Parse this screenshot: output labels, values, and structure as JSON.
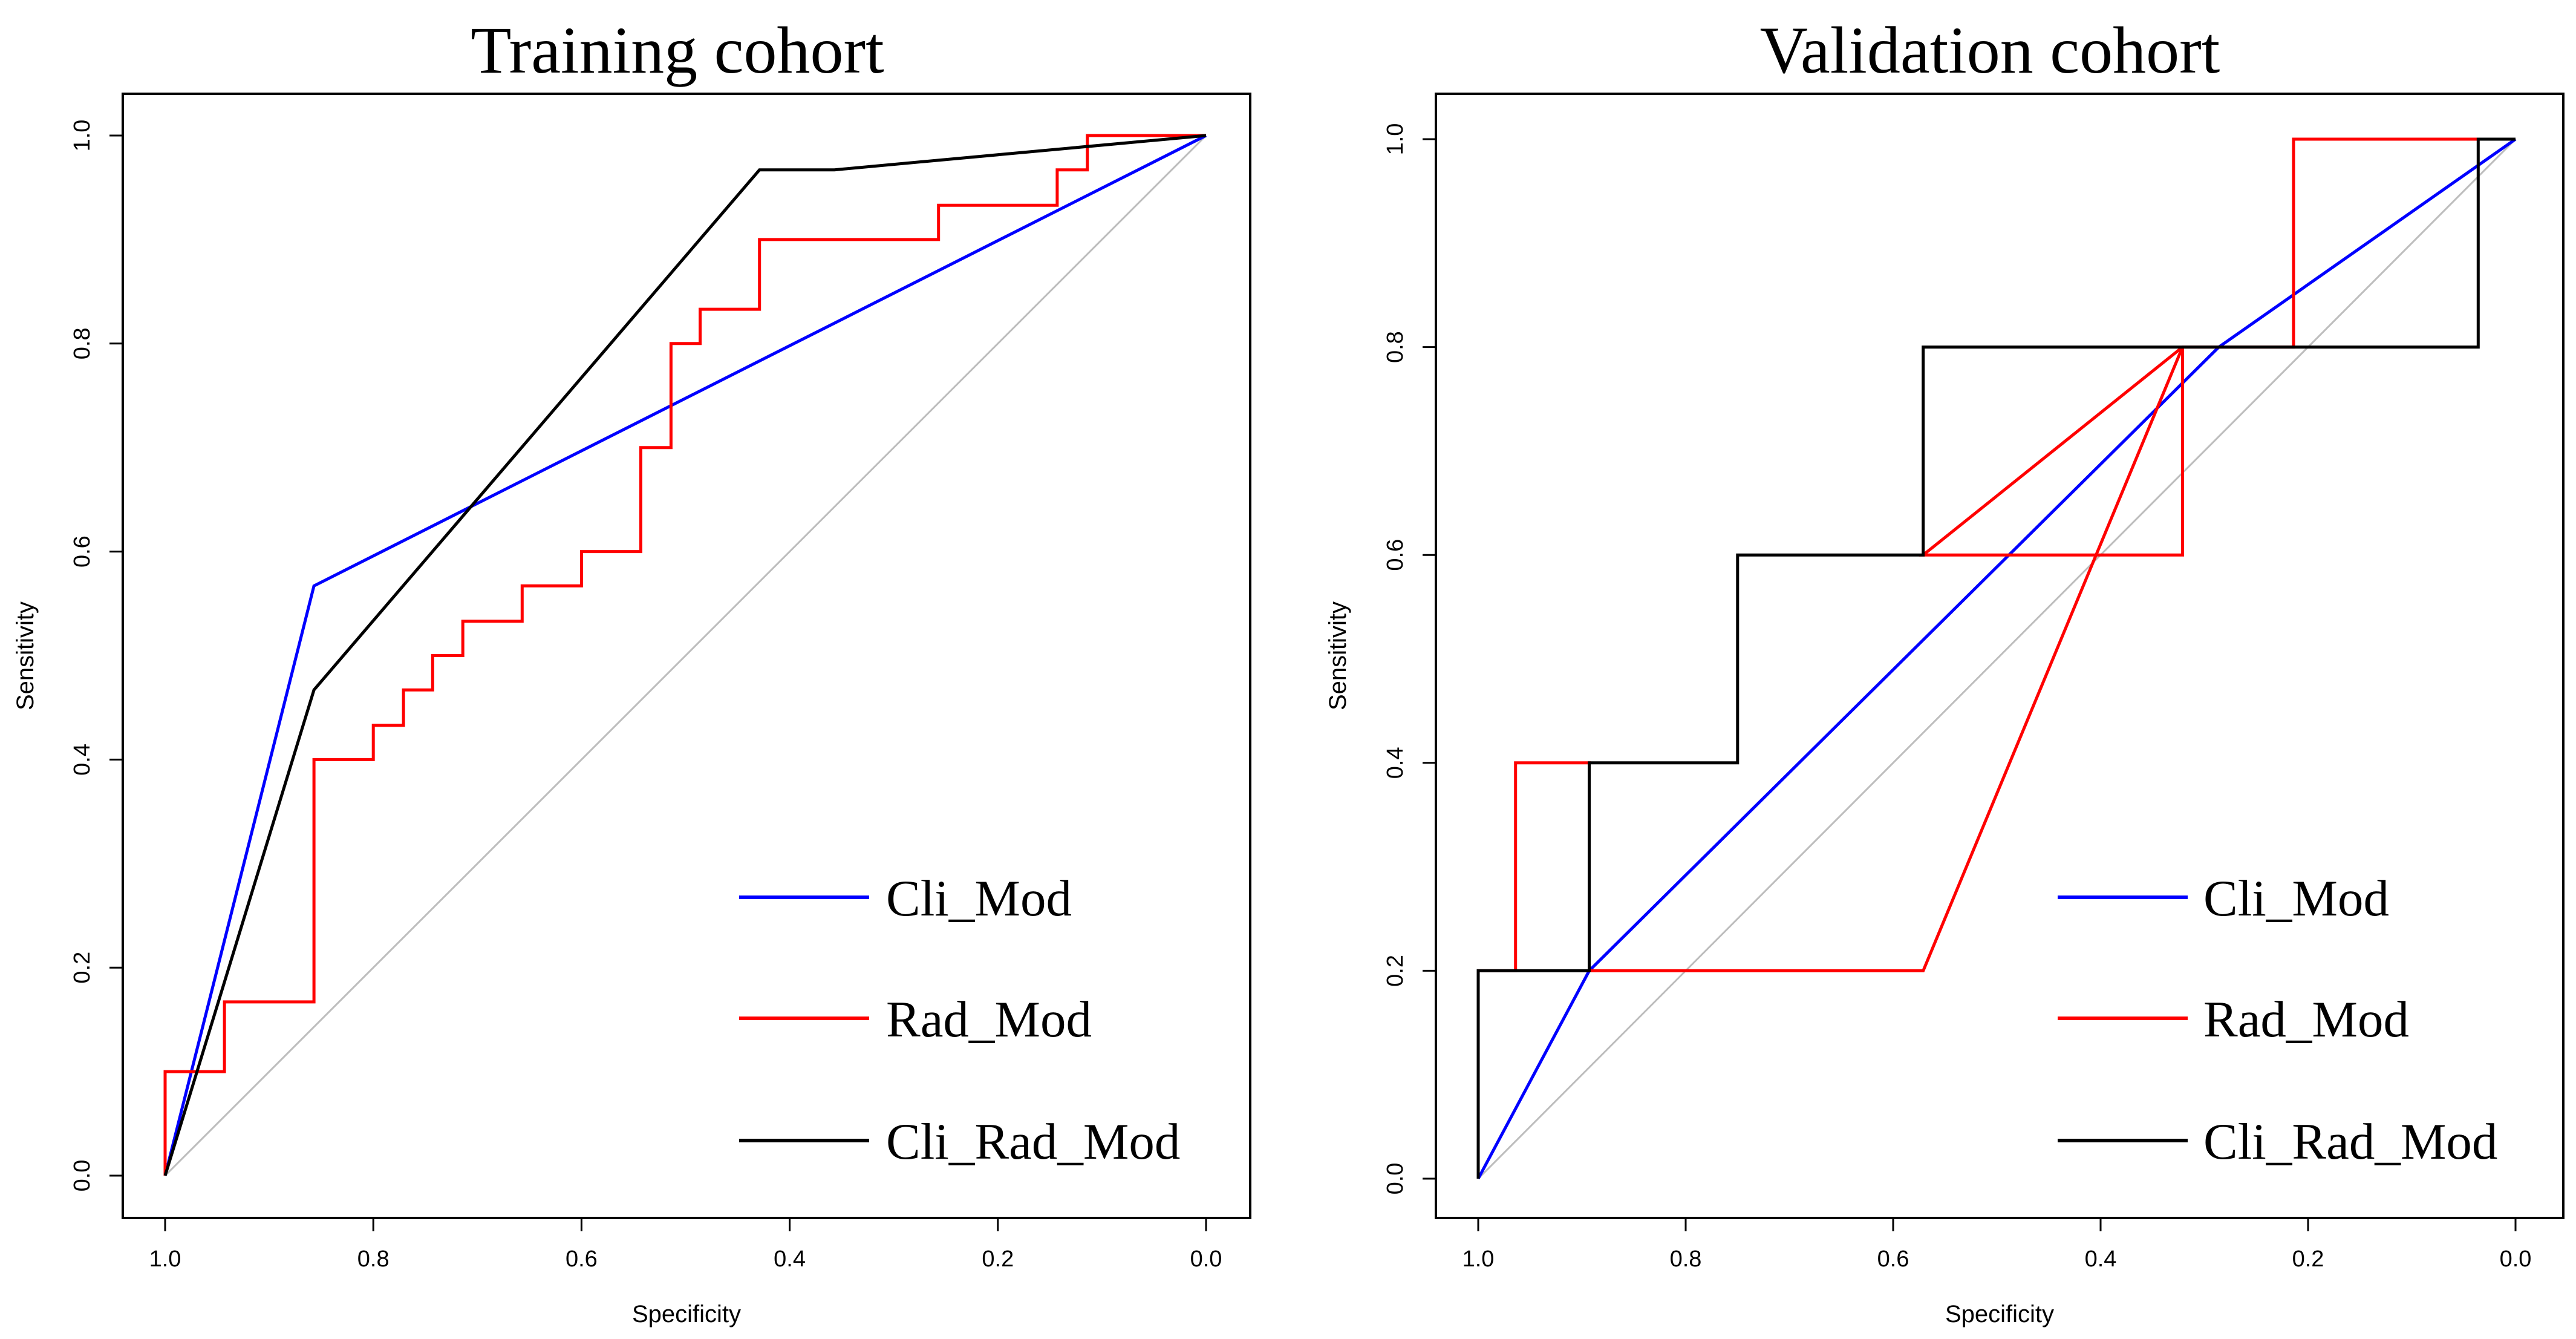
{
  "chart_data": [
    {
      "type": "line",
      "title": "Training cohort",
      "xlabel": "Specificity",
      "ylabel": "Sensitivity",
      "xlim": [
        1.0,
        0.0
      ],
      "ylim": [
        0.0,
        1.0
      ],
      "x_ticks": [
        1.0,
        0.8,
        0.6,
        0.4,
        0.2,
        0.0
      ],
      "x_tick_labels": [
        "1.0",
        "0.8",
        "0.6",
        "0.4",
        "0.2",
        "0.0"
      ],
      "y_ticks": [
        0.0,
        0.2,
        0.4,
        0.6,
        0.8,
        1.0
      ],
      "y_tick_labels": [
        "0.0",
        "0.2",
        "0.4",
        "0.6",
        "0.8",
        "1.0"
      ],
      "diagonal": true,
      "legend_position": "bottom-right",
      "series": [
        {
          "name": "Cli_Mod",
          "color": "#0000ff",
          "points": [
            [
              1.0,
              0.0
            ],
            [
              0.857,
              0.567
            ],
            [
              0.0,
              1.0
            ]
          ]
        },
        {
          "name": "Rad_Mod",
          "color": "#ff0000",
          "points": [
            [
              1.0,
              0.0
            ],
            [
              1.0,
              0.1
            ],
            [
              0.943,
              0.1
            ],
            [
              0.943,
              0.167
            ],
            [
              0.857,
              0.167
            ],
            [
              0.857,
              0.4
            ],
            [
              0.8,
              0.4
            ],
            [
              0.8,
              0.433
            ],
            [
              0.771,
              0.433
            ],
            [
              0.771,
              0.467
            ],
            [
              0.743,
              0.467
            ],
            [
              0.743,
              0.5
            ],
            [
              0.714,
              0.5
            ],
            [
              0.714,
              0.533
            ],
            [
              0.657,
              0.533
            ],
            [
              0.657,
              0.567
            ],
            [
              0.6,
              0.567
            ],
            [
              0.6,
              0.6
            ],
            [
              0.543,
              0.6
            ],
            [
              0.543,
              0.7
            ],
            [
              0.514,
              0.7
            ],
            [
              0.514,
              0.8
            ],
            [
              0.486,
              0.8
            ],
            [
              0.486,
              0.833
            ],
            [
              0.429,
              0.833
            ],
            [
              0.429,
              0.9
            ],
            [
              0.257,
              0.9
            ],
            [
              0.257,
              0.933
            ],
            [
              0.143,
              0.933
            ],
            [
              0.143,
              0.967
            ],
            [
              0.114,
              0.967
            ],
            [
              0.114,
              1.0
            ],
            [
              0.0,
              1.0
            ]
          ]
        },
        {
          "name": "Cli_Rad_Mod",
          "color": "#000000",
          "points": [
            [
              1.0,
              0.0
            ],
            [
              0.857,
              0.467
            ],
            [
              0.429,
              0.967
            ],
            [
              0.357,
              0.967
            ],
            [
              0.0,
              1.0
            ]
          ]
        }
      ]
    },
    {
      "type": "line",
      "title": "Validation cohort",
      "xlabel": "Specificity",
      "ylabel": "Sensitivity",
      "xlim": [
        1.0,
        0.0
      ],
      "ylim": [
        0.0,
        1.0
      ],
      "x_ticks": [
        1.0,
        0.8,
        0.6,
        0.4,
        0.2,
        0.0
      ],
      "x_tick_labels": [
        "1.0",
        "0.8",
        "0.6",
        "0.4",
        "0.2",
        "0.0"
      ],
      "y_ticks": [
        0.0,
        0.2,
        0.4,
        0.6,
        0.8,
        1.0
      ],
      "y_tick_labels": [
        "0.0",
        "0.2",
        "0.4",
        "0.6",
        "0.8",
        "1.0"
      ],
      "diagonal": true,
      "legend_position": "bottom-right",
      "series": [
        {
          "name": "Cli_Mod",
          "color": "#0000ff",
          "points": [
            [
              1.0,
              0.0
            ],
            [
              0.893,
              0.2
            ],
            [
              0.286,
              0.8
            ],
            [
              0.0,
              1.0
            ]
          ]
        },
        {
          "name": "Rad_Mod",
          "color": "#ff0000",
          "points": [
            [
              1.0,
              0.0
            ],
            [
              1.0,
              0.2
            ],
            [
              0.964,
              0.2
            ],
            [
              0.964,
              0.4
            ],
            [
              0.893,
              0.4
            ],
            [
              0.893,
              0.2
            ],
            [
              0.571,
              0.2
            ],
            [
              0.321,
              0.8
            ],
            [
              0.321,
              0.6
            ],
            [
              0.571,
              0.6
            ],
            [
              0.321,
              0.8
            ],
            [
              0.214,
              0.8
            ],
            [
              0.214,
              1.0
            ],
            [
              0.0,
              1.0
            ]
          ]
        },
        {
          "name": "Cli_Rad_Mod",
          "color": "#000000",
          "points": [
            [
              1.0,
              0.0
            ],
            [
              1.0,
              0.2
            ],
            [
              0.893,
              0.2
            ],
            [
              0.893,
              0.4
            ],
            [
              0.75,
              0.4
            ],
            [
              0.75,
              0.6
            ],
            [
              0.571,
              0.6
            ],
            [
              0.571,
              0.8
            ],
            [
              0.036,
              0.8
            ],
            [
              0.036,
              1.0
            ],
            [
              0.0,
              1.0
            ]
          ]
        }
      ]
    }
  ]
}
